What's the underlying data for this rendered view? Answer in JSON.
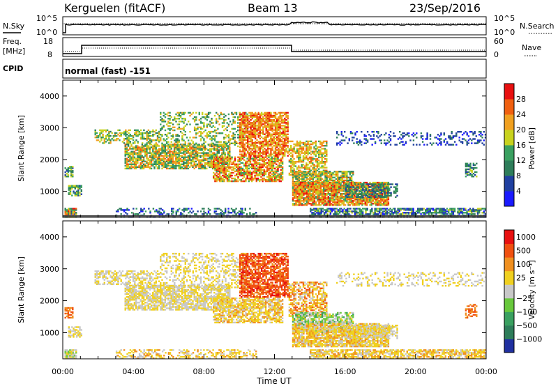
{
  "header": {
    "station": "Kerguelen (fitACF)",
    "beam": "Beam 13",
    "date": "23/Sep/2016"
  },
  "nsky_panel": {
    "left_label": "N.Sky",
    "left_ticks": [
      "10^5",
      "10^0"
    ],
    "right_ticks": [
      "10^5",
      "10^0"
    ],
    "right_label": "N.Search"
  },
  "freq_panel": {
    "left_label_line1": "Freq.",
    "left_label_line2": "[MHz]",
    "left_ticks": [
      "18",
      "8"
    ],
    "right_ticks": [
      "60",
      "0"
    ],
    "right_label": "Nave"
  },
  "cpid": {
    "label": "CPID",
    "text": "normal (fast) -151"
  },
  "colors": {
    "power": [
      "#1a1aff",
      "#2040a0",
      "#2e7d5a",
      "#3aa060",
      "#c8d21e",
      "#f0a020",
      "#f06010",
      "#e81010"
    ],
    "velocity": [
      "#2030a0",
      "#2e7d5a",
      "#3aa060",
      "#68c83c",
      "#c8c8c8",
      "#f0d020",
      "#f09020",
      "#f05010",
      "#e81010"
    ]
  },
  "chart_data": [
    {
      "type": "heatmap",
      "quantity": "Power",
      "ylabel": "Slant Range [km]",
      "ylim": [
        180,
        4500
      ],
      "yticks": [
        "1000",
        "2000",
        "3000",
        "4000"
      ],
      "colorbar_label": "Power [dB]",
      "colorbar_ticks": [
        "4",
        "8",
        "12",
        "16",
        "20",
        "24",
        "28"
      ],
      "colorbar_range": [
        0,
        32
      ]
    },
    {
      "type": "heatmap",
      "quantity": "Velocity",
      "ylabel": "Slant Range [km]",
      "ylim": [
        180,
        4500
      ],
      "yticks": [
        "1000",
        "2000",
        "3000",
        "4000"
      ],
      "colorbar_label": "Velocity [m s⁻¹]",
      "colorbar_ticks": [
        "1000",
        "500",
        "100",
        "25",
        "−25",
        "−100",
        "−500",
        "−1000"
      ]
    }
  ],
  "time_axis": {
    "xlabel": "Time UT",
    "tick_labels": [
      "00:00",
      "04:00",
      "08:00",
      "12:00",
      "16:00",
      "20:00",
      "00:00"
    ],
    "range_hours": [
      0,
      24
    ]
  },
  "scatter_regions": [
    {
      "t0": 0.1,
      "t1": 0.8,
      "r0": 180,
      "r1": 480,
      "p": [
        1,
        7
      ],
      "v": [
        3,
        5
      ],
      "dens": 0.9
    },
    {
      "t0": 3.0,
      "t1": 11.0,
      "r0": 180,
      "r1": 480,
      "p": [
        0,
        3
      ],
      "v": [
        4,
        6
      ],
      "dens": 0.35
    },
    {
      "t0": 14.0,
      "t1": 24.0,
      "r0": 180,
      "r1": 480,
      "p": [
        0,
        4
      ],
      "v": [
        4,
        6
      ],
      "dens": 0.7
    },
    {
      "t0": 0.1,
      "t1": 0.6,
      "r0": 1450,
      "r1": 1800,
      "p": [
        1,
        4
      ],
      "v": [
        6,
        7
      ],
      "dens": 0.7
    },
    {
      "t0": 0.3,
      "t1": 1.1,
      "r0": 850,
      "r1": 1200,
      "p": [
        1,
        4
      ],
      "v": [
        4,
        5
      ],
      "dens": 0.7
    },
    {
      "t0": 1.8,
      "t1": 5.5,
      "r0": 2500,
      "r1": 2950,
      "p": [
        2,
        5
      ],
      "v": [
        4,
        5
      ],
      "dens": 0.5
    },
    {
      "t0": 3.5,
      "t1": 9.5,
      "r0": 1700,
      "r1": 2500,
      "p": [
        2,
        6
      ],
      "v": [
        4,
        5
      ],
      "dens": 0.75
    },
    {
      "t0": 8.5,
      "t1": 12.5,
      "r0": 1300,
      "r1": 2100,
      "p": [
        3,
        7
      ],
      "v": [
        4,
        6
      ],
      "dens": 0.7
    },
    {
      "t0": 5.5,
      "t1": 10.5,
      "r0": 2400,
      "r1": 3500,
      "p": [
        2,
        5
      ],
      "v": [
        4,
        5
      ],
      "dens": 0.35
    },
    {
      "t0": 10.0,
      "t1": 12.8,
      "r0": 2100,
      "r1": 3500,
      "p": [
        4,
        7
      ],
      "v": [
        6,
        8
      ],
      "dens": 0.75
    },
    {
      "t0": 12.8,
      "t1": 15.0,
      "r0": 1500,
      "r1": 2600,
      "p": [
        3,
        6
      ],
      "v": [
        4,
        7
      ],
      "dens": 0.6
    },
    {
      "t0": 13.0,
      "t1": 16.5,
      "r0": 1000,
      "r1": 1650,
      "p": [
        2,
        6
      ],
      "v": [
        2,
        5
      ],
      "dens": 0.75
    },
    {
      "t0": 13.0,
      "t1": 18.5,
      "r0": 550,
      "r1": 1300,
      "p": [
        3,
        7
      ],
      "v": [
        4,
        6
      ],
      "dens": 0.85
    },
    {
      "t0": 16.0,
      "t1": 19.0,
      "r0": 800,
      "r1": 1250,
      "p": [
        1,
        3
      ],
      "v": [
        4,
        5
      ],
      "dens": 0.55
    },
    {
      "t0": 15.5,
      "t1": 24.0,
      "r0": 2450,
      "r1": 2900,
      "p": [
        0,
        2
      ],
      "v": [
        4,
        5
      ],
      "dens": 0.25
    },
    {
      "t0": 22.8,
      "t1": 23.5,
      "r0": 1450,
      "r1": 1900,
      "p": [
        1,
        4
      ],
      "v": [
        6,
        7
      ],
      "dens": 0.5
    }
  ]
}
